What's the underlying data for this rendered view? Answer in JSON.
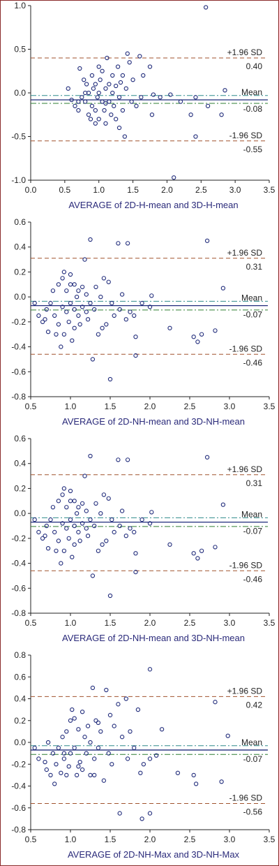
{
  "colors": {
    "frame": "#8a2a2a",
    "sd_line": "#a0522d",
    "mean_line": "#1f2a7a",
    "ci_upper": "#2e8b8b",
    "ci_lower": "#2e7d32",
    "points": "#1f2a7a"
  },
  "chart_data": [
    {
      "type": "scatter",
      "title": "",
      "xlabel": "AVERAGE of 2D-H-mean and 3D-H-mean",
      "ylabel": "",
      "xlim": [
        0,
        3.5
      ],
      "ylim": [
        -1.0,
        1.0
      ],
      "xticks": [
        "0.0",
        "0.5",
        "1.0",
        "1.5",
        "2.0",
        "2.5",
        "3.0",
        "3.5"
      ],
      "yticks": [
        "-1.0",
        "-0.5",
        "0.0",
        "0.5",
        "1.0"
      ],
      "lines": {
        "upper": {
          "label": "+1.96 SD",
          "value": 0.4,
          "value_label": "0.40"
        },
        "mean": {
          "label": "Mean",
          "value": -0.08,
          "value_label": "-0.08"
        },
        "lower": {
          "label": "-1.96 SD",
          "value": -0.55,
          "value_label": "-0.55"
        },
        "ci_upper": -0.03,
        "ci_lower": -0.12
      },
      "points": [
        [
          0.55,
          0.05
        ],
        [
          0.6,
          -0.08
        ],
        [
          0.65,
          -0.15
        ],
        [
          0.7,
          -0.2
        ],
        [
          0.72,
          0.28
        ],
        [
          0.75,
          -0.05
        ],
        [
          0.78,
          0.15
        ],
        [
          0.8,
          -0.1
        ],
        [
          0.82,
          0.1
        ],
        [
          0.85,
          -0.25
        ],
        [
          0.85,
          0.0
        ],
        [
          0.88,
          -0.3
        ],
        [
          0.9,
          0.2
        ],
        [
          0.9,
          -0.15
        ],
        [
          0.92,
          0.05
        ],
        [
          0.95,
          -0.2
        ],
        [
          0.95,
          0.1
        ],
        [
          0.98,
          -0.05
        ],
        [
          1.0,
          -0.3
        ],
        [
          1.0,
          0.0
        ],
        [
          1.02,
          0.15
        ],
        [
          1.05,
          -0.1
        ],
        [
          1.05,
          0.25
        ],
        [
          1.08,
          -0.2
        ],
        [
          1.1,
          0.05
        ],
        [
          1.1,
          -0.35
        ],
        [
          1.12,
          0.4
        ],
        [
          1.15,
          -0.1
        ],
        [
          1.15,
          0.1
        ],
        [
          1.18,
          -0.25
        ],
        [
          1.2,
          0.0
        ],
        [
          1.2,
          0.2
        ],
        [
          1.22,
          -0.15
        ],
        [
          1.25,
          0.08
        ],
        [
          1.25,
          -0.3
        ],
        [
          1.28,
          0.3
        ],
        [
          1.3,
          -0.05
        ],
        [
          1.3,
          -0.4
        ],
        [
          1.32,
          0.12
        ],
        [
          1.35,
          -0.2
        ],
        [
          1.38,
          -0.5
        ],
        [
          1.4,
          0.05
        ],
        [
          1.42,
          0.45
        ],
        [
          1.45,
          0.35
        ],
        [
          1.48,
          -0.1
        ],
        [
          1.5,
          0.15
        ],
        [
          1.55,
          -0.15
        ],
        [
          1.6,
          0.42
        ],
        [
          1.62,
          -0.05
        ],
        [
          1.65,
          0.2
        ],
        [
          1.75,
          0.3
        ],
        [
          1.78,
          -0.25
        ],
        [
          1.8,
          -0.02
        ],
        [
          1.9,
          -0.05
        ],
        [
          2.05,
          -0.02
        ],
        [
          2.1,
          -0.97
        ],
        [
          2.2,
          -0.1
        ],
        [
          2.35,
          -0.25
        ],
        [
          2.42,
          -0.05
        ],
        [
          2.42,
          -0.5
        ],
        [
          2.57,
          0.98
        ],
        [
          2.6,
          -0.15
        ],
        [
          2.8,
          -0.25
        ],
        [
          2.85,
          0.03
        ],
        [
          0.7,
          -0.1
        ],
        [
          0.95,
          -0.35
        ],
        [
          1.0,
          0.3
        ],
        [
          1.1,
          -0.12
        ],
        [
          1.35,
          0.2
        ],
        [
          0.8,
          0.0
        ]
      ]
    },
    {
      "type": "scatter",
      "title": "",
      "xlabel": "AVERAGE of 2D-NH-mean and 3D-NH-mean",
      "ylabel": "",
      "xlim": [
        0.5,
        3.5
      ],
      "ylim": [
        -0.8,
        0.6
      ],
      "xticks": [
        "0.5",
        "1.0",
        "1.5",
        "2.0",
        "2.5",
        "3.0",
        "3.5"
      ],
      "yticks": [
        "-0.8",
        "-0.6",
        "-0.4",
        "-0.2",
        "0.0",
        "0.2",
        "0.4",
        "0.6"
      ],
      "lines": {
        "upper": {
          "label": "+1.96 SD",
          "value": 0.31,
          "value_label": "0.31"
        },
        "mean": {
          "label": "Mean",
          "value": -0.07,
          "value_label": "-0.07"
        },
        "lower": {
          "label": "-1.96 SD",
          "value": -0.46,
          "value_label": "-0.46"
        },
        "ci_upper": -0.035,
        "ci_lower": -0.105
      },
      "points": [
        [
          0.55,
          -0.05
        ],
        [
          0.6,
          -0.15
        ],
        [
          0.65,
          -0.2
        ],
        [
          0.7,
          -0.1
        ],
        [
          0.72,
          -0.28
        ],
        [
          0.75,
          -0.05
        ],
        [
          0.78,
          0.05
        ],
        [
          0.8,
          -0.15
        ],
        [
          0.82,
          -0.3
        ],
        [
          0.85,
          0.1
        ],
        [
          0.85,
          -0.22
        ],
        [
          0.88,
          -0.4
        ],
        [
          0.9,
          0.15
        ],
        [
          0.9,
          -0.08
        ],
        [
          0.92,
          0.2
        ],
        [
          0.95,
          -0.12
        ],
        [
          0.95,
          0.05
        ],
        [
          0.98,
          -0.2
        ],
        [
          1.0,
          0.18
        ],
        [
          1.0,
          -0.05
        ],
        [
          1.02,
          -0.35
        ],
        [
          1.05,
          0.1
        ],
        [
          1.05,
          -0.25
        ],
        [
          1.08,
          0.0
        ],
        [
          1.1,
          -0.15
        ],
        [
          1.1,
          0.05
        ],
        [
          1.12,
          -0.22
        ],
        [
          1.15,
          0.08
        ],
        [
          1.15,
          -0.08
        ],
        [
          1.18,
          0.3
        ],
        [
          1.2,
          -0.12
        ],
        [
          1.2,
          0.02
        ],
        [
          1.22,
          -0.18
        ],
        [
          1.25,
          0.46
        ],
        [
          1.25,
          -0.05
        ],
        [
          1.28,
          -0.5
        ],
        [
          1.3,
          -0.1
        ],
        [
          1.32,
          0.08
        ],
        [
          1.35,
          -0.3
        ],
        [
          1.38,
          0.0
        ],
        [
          1.42,
          0.15
        ],
        [
          1.45,
          -0.22
        ],
        [
          1.48,
          0.12
        ],
        [
          1.5,
          -0.66
        ],
        [
          1.52,
          -0.05
        ],
        [
          1.55,
          -0.15
        ],
        [
          1.6,
          0.43
        ],
        [
          1.62,
          -0.1
        ],
        [
          1.65,
          0.02
        ],
        [
          1.7,
          -0.18
        ],
        [
          1.72,
          0.43
        ],
        [
          1.75,
          -0.12
        ],
        [
          1.8,
          -0.15
        ],
        [
          1.82,
          -0.32
        ],
        [
          1.82,
          -0.47
        ],
        [
          1.9,
          -0.05
        ],
        [
          2.0,
          -0.08
        ],
        [
          2.02,
          0.01
        ],
        [
          2.25,
          -0.25
        ],
        [
          2.55,
          -0.32
        ],
        [
          2.6,
          -0.36
        ],
        [
          2.65,
          -0.3
        ],
        [
          2.72,
          0.45
        ],
        [
          2.82,
          -0.27
        ],
        [
          2.92,
          0.07
        ],
        [
          0.68,
          -0.18
        ],
        [
          0.92,
          -0.3
        ],
        [
          1.0,
          0.1
        ],
        [
          1.05,
          -0.1
        ],
        [
          1.4,
          -0.25
        ]
      ]
    },
    {
      "type": "scatter",
      "title": "",
      "xlabel": "AVERAGE of 2D-NH-mean and 3D-NH-mean",
      "ylabel": "",
      "xlim": [
        0.5,
        3.5
      ],
      "ylim": [
        -0.8,
        0.6
      ],
      "xticks": [
        "0.5",
        "1.0",
        "1.5",
        "2.0",
        "2.5",
        "3.0",
        "3.5"
      ],
      "yticks": [
        "-0.8",
        "-0.6",
        "-0.4",
        "-0.2",
        "0.0",
        "0.2",
        "0.4",
        "0.6"
      ],
      "lines": {
        "upper": {
          "label": "+1.96 SD",
          "value": 0.31,
          "value_label": "0.31"
        },
        "mean": {
          "label": "Mean",
          "value": -0.07,
          "value_label": "-0.07"
        },
        "lower": {
          "label": "-1.96 SD",
          "value": -0.46,
          "value_label": "-0.46"
        },
        "ci_upper": -0.035,
        "ci_lower": -0.105
      },
      "points": [
        [
          0.55,
          -0.05
        ],
        [
          0.6,
          -0.15
        ],
        [
          0.65,
          -0.2
        ],
        [
          0.7,
          -0.1
        ],
        [
          0.72,
          -0.28
        ],
        [
          0.75,
          -0.05
        ],
        [
          0.78,
          0.05
        ],
        [
          0.8,
          -0.15
        ],
        [
          0.82,
          -0.3
        ],
        [
          0.85,
          0.1
        ],
        [
          0.85,
          -0.22
        ],
        [
          0.88,
          -0.4
        ],
        [
          0.9,
          0.15
        ],
        [
          0.9,
          -0.08
        ],
        [
          0.92,
          0.2
        ],
        [
          0.95,
          -0.12
        ],
        [
          0.95,
          0.05
        ],
        [
          0.98,
          -0.2
        ],
        [
          1.0,
          0.18
        ],
        [
          1.0,
          -0.05
        ],
        [
          1.02,
          -0.35
        ],
        [
          1.05,
          0.1
        ],
        [
          1.05,
          -0.25
        ],
        [
          1.08,
          0.0
        ],
        [
          1.1,
          -0.15
        ],
        [
          1.1,
          0.05
        ],
        [
          1.12,
          -0.22
        ],
        [
          1.15,
          0.08
        ],
        [
          1.15,
          -0.08
        ],
        [
          1.18,
          0.3
        ],
        [
          1.2,
          -0.12
        ],
        [
          1.2,
          0.02
        ],
        [
          1.22,
          -0.18
        ],
        [
          1.25,
          0.46
        ],
        [
          1.25,
          -0.05
        ],
        [
          1.28,
          -0.5
        ],
        [
          1.3,
          -0.1
        ],
        [
          1.32,
          0.08
        ],
        [
          1.35,
          -0.3
        ],
        [
          1.38,
          0.0
        ],
        [
          1.42,
          0.15
        ],
        [
          1.45,
          -0.22
        ],
        [
          1.48,
          0.12
        ],
        [
          1.5,
          -0.66
        ],
        [
          1.52,
          -0.05
        ],
        [
          1.55,
          -0.15
        ],
        [
          1.6,
          0.43
        ],
        [
          1.62,
          -0.1
        ],
        [
          1.65,
          0.02
        ],
        [
          1.7,
          -0.18
        ],
        [
          1.72,
          0.43
        ],
        [
          1.75,
          -0.12
        ],
        [
          1.8,
          -0.15
        ],
        [
          1.82,
          -0.32
        ],
        [
          1.82,
          -0.47
        ],
        [
          1.9,
          -0.05
        ],
        [
          2.0,
          -0.08
        ],
        [
          2.02,
          0.01
        ],
        [
          2.25,
          -0.25
        ],
        [
          2.55,
          -0.32
        ],
        [
          2.6,
          -0.36
        ],
        [
          2.65,
          -0.3
        ],
        [
          2.72,
          0.45
        ],
        [
          2.82,
          -0.27
        ],
        [
          2.92,
          0.07
        ],
        [
          0.68,
          -0.18
        ],
        [
          0.92,
          -0.3
        ],
        [
          1.0,
          0.1
        ],
        [
          1.05,
          -0.1
        ],
        [
          1.4,
          -0.25
        ]
      ]
    },
    {
      "type": "scatter",
      "title": "",
      "xlabel": "AVERAGE of 2D-NH-Max and 3D-NH-Max",
      "ylabel": "",
      "xlim": [
        0.5,
        3.5
      ],
      "ylim": [
        -0.8,
        0.8
      ],
      "xticks": [
        "0.5",
        "1.0",
        "1.5",
        "2.0",
        "2.5",
        "3.0",
        "3.5"
      ],
      "yticks": [
        "-0.8",
        "-0.6",
        "-0.4",
        "-0.2",
        "0.0",
        "0.2",
        "0.4",
        "0.6",
        "0.8"
      ],
      "lines": {
        "upper": {
          "label": "+1.96 SD",
          "value": 0.42,
          "value_label": "0.42"
        },
        "mean": {
          "label": "Mean",
          "value": -0.07,
          "value_label": "-0.07"
        },
        "lower": {
          "label": "-1.96 SD",
          "value": -0.56,
          "value_label": "-0.56"
        },
        "ci_upper": -0.03,
        "ci_lower": -0.11
      },
      "points": [
        [
          0.55,
          -0.05
        ],
        [
          0.6,
          -0.15
        ],
        [
          0.7,
          -0.25
        ],
        [
          0.72,
          0.0
        ],
        [
          0.75,
          -0.3
        ],
        [
          0.78,
          -0.1
        ],
        [
          0.8,
          -0.38
        ],
        [
          0.82,
          -0.2
        ],
        [
          0.85,
          -0.05
        ],
        [
          0.88,
          -0.28
        ],
        [
          0.9,
          0.05
        ],
        [
          0.92,
          -0.15
        ],
        [
          0.95,
          -0.3
        ],
        [
          0.95,
          0.1
        ],
        [
          0.98,
          -0.22
        ],
        [
          1.0,
          0.2
        ],
        [
          1.0,
          -0.1
        ],
        [
          1.02,
          0.3
        ],
        [
          1.05,
          -0.05
        ],
        [
          1.05,
          0.22
        ],
        [
          1.08,
          -0.3
        ],
        [
          1.1,
          0.12
        ],
        [
          1.12,
          -0.18
        ],
        [
          1.15,
          0.28
        ],
        [
          1.15,
          -0.25
        ],
        [
          1.18,
          0.05
        ],
        [
          1.2,
          -0.1
        ],
        [
          1.22,
          0.15
        ],
        [
          1.25,
          -0.3
        ],
        [
          1.25,
          0.0
        ],
        [
          1.28,
          0.5
        ],
        [
          1.3,
          -0.15
        ],
        [
          1.32,
          0.2
        ],
        [
          1.35,
          -0.05
        ],
        [
          1.38,
          0.1
        ],
        [
          1.42,
          -0.35
        ],
        [
          1.45,
          0.48
        ],
        [
          1.48,
          -0.1
        ],
        [
          1.5,
          0.25
        ],
        [
          1.52,
          -0.2
        ],
        [
          1.55,
          0.15
        ],
        [
          1.6,
          0.35
        ],
        [
          1.62,
          -0.65
        ],
        [
          1.65,
          0.05
        ],
        [
          1.7,
          0.4
        ],
        [
          1.72,
          -0.15
        ],
        [
          1.75,
          0.1
        ],
        [
          1.8,
          -0.05
        ],
        [
          1.85,
          0.3
        ],
        [
          1.88,
          -0.28
        ],
        [
          1.92,
          -0.2
        ],
        [
          2.0,
          -0.65
        ],
        [
          2.0,
          -0.15
        ],
        [
          2.0,
          0.67
        ],
        [
          2.08,
          -0.12
        ],
        [
          2.15,
          0.12
        ],
        [
          2.35,
          -0.28
        ],
        [
          2.55,
          -0.3
        ],
        [
          2.58,
          -0.38
        ],
        [
          2.82,
          0.37
        ],
        [
          2.9,
          -0.36
        ],
        [
          2.98,
          0.06
        ],
        [
          0.68,
          -0.18
        ],
        [
          0.92,
          -0.1
        ],
        [
          1.1,
          -0.22
        ],
        [
          1.3,
          -0.3
        ],
        [
          1.9,
          -0.7
        ],
        [
          1.35,
          0.18
        ]
      ]
    }
  ]
}
